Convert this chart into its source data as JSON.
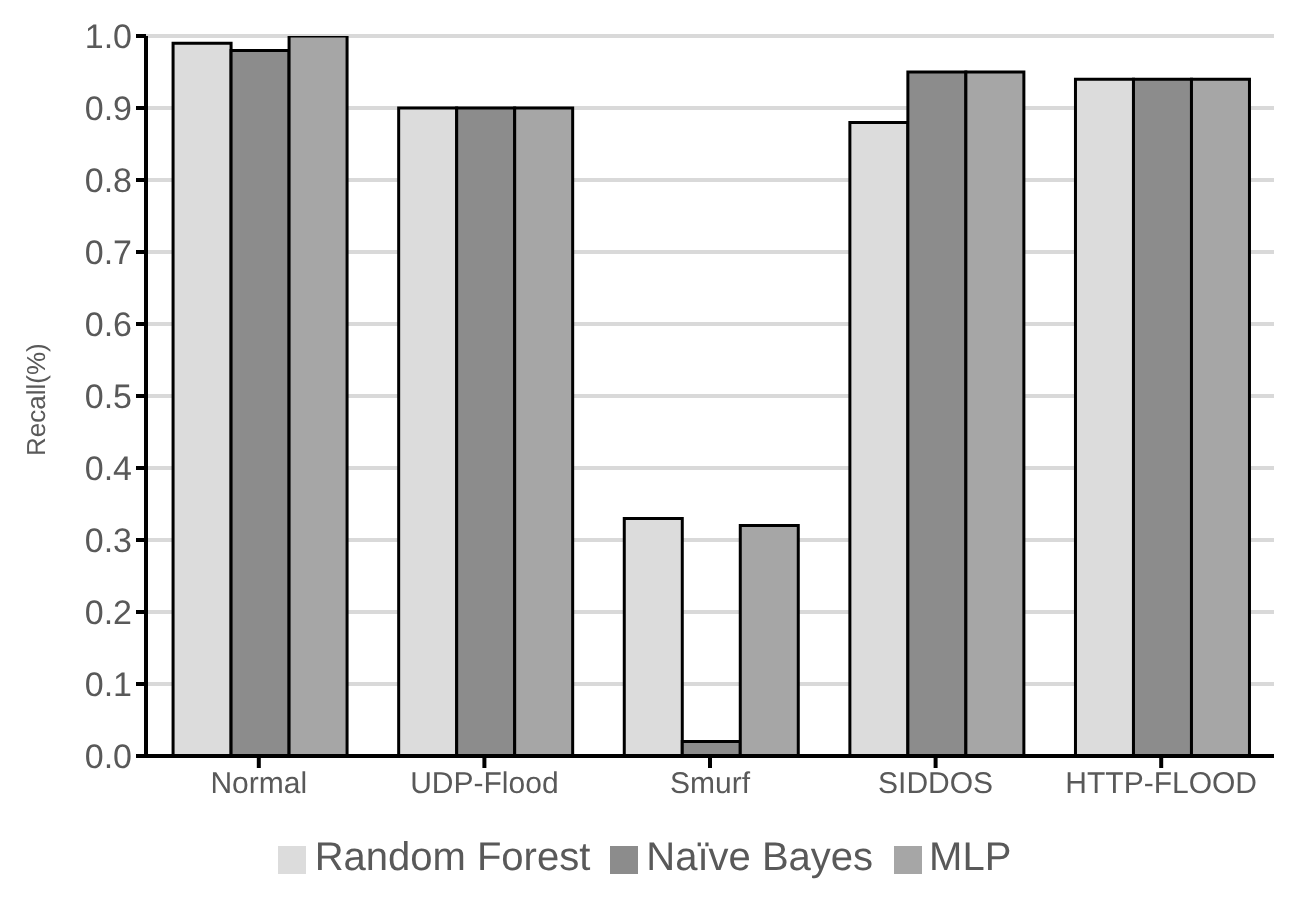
{
  "chart_data": {
    "type": "bar",
    "ylabel": "Recall(%)",
    "categories": [
      "Normal",
      "UDP-Flood",
      "Smurf",
      "SIDDOS",
      "HTTP-FLOOD"
    ],
    "series": [
      {
        "name": "Random Forest",
        "color": "#dcdcdc",
        "values": [
          0.99,
          0.9,
          0.33,
          0.88,
          0.94
        ]
      },
      {
        "name": "Naïve Bayes",
        "color": "#8c8c8c",
        "values": [
          0.98,
          0.9,
          0.02,
          0.95,
          0.94
        ]
      },
      {
        "name": "MLP",
        "color": "#a6a6a6",
        "values": [
          1.0,
          0.9,
          0.32,
          0.95,
          0.94
        ]
      }
    ],
    "ylim": [
      0,
      1
    ],
    "yticks": [
      {
        "value": 0,
        "label": "0.0"
      },
      0.1,
      0.2,
      0.3,
      0.4,
      0.5,
      0.6,
      0.7,
      0.8,
      0.9,
      {
        "value": 1,
        "label": "1.0"
      }
    ],
    "grid": "y",
    "legend": "bottom"
  }
}
